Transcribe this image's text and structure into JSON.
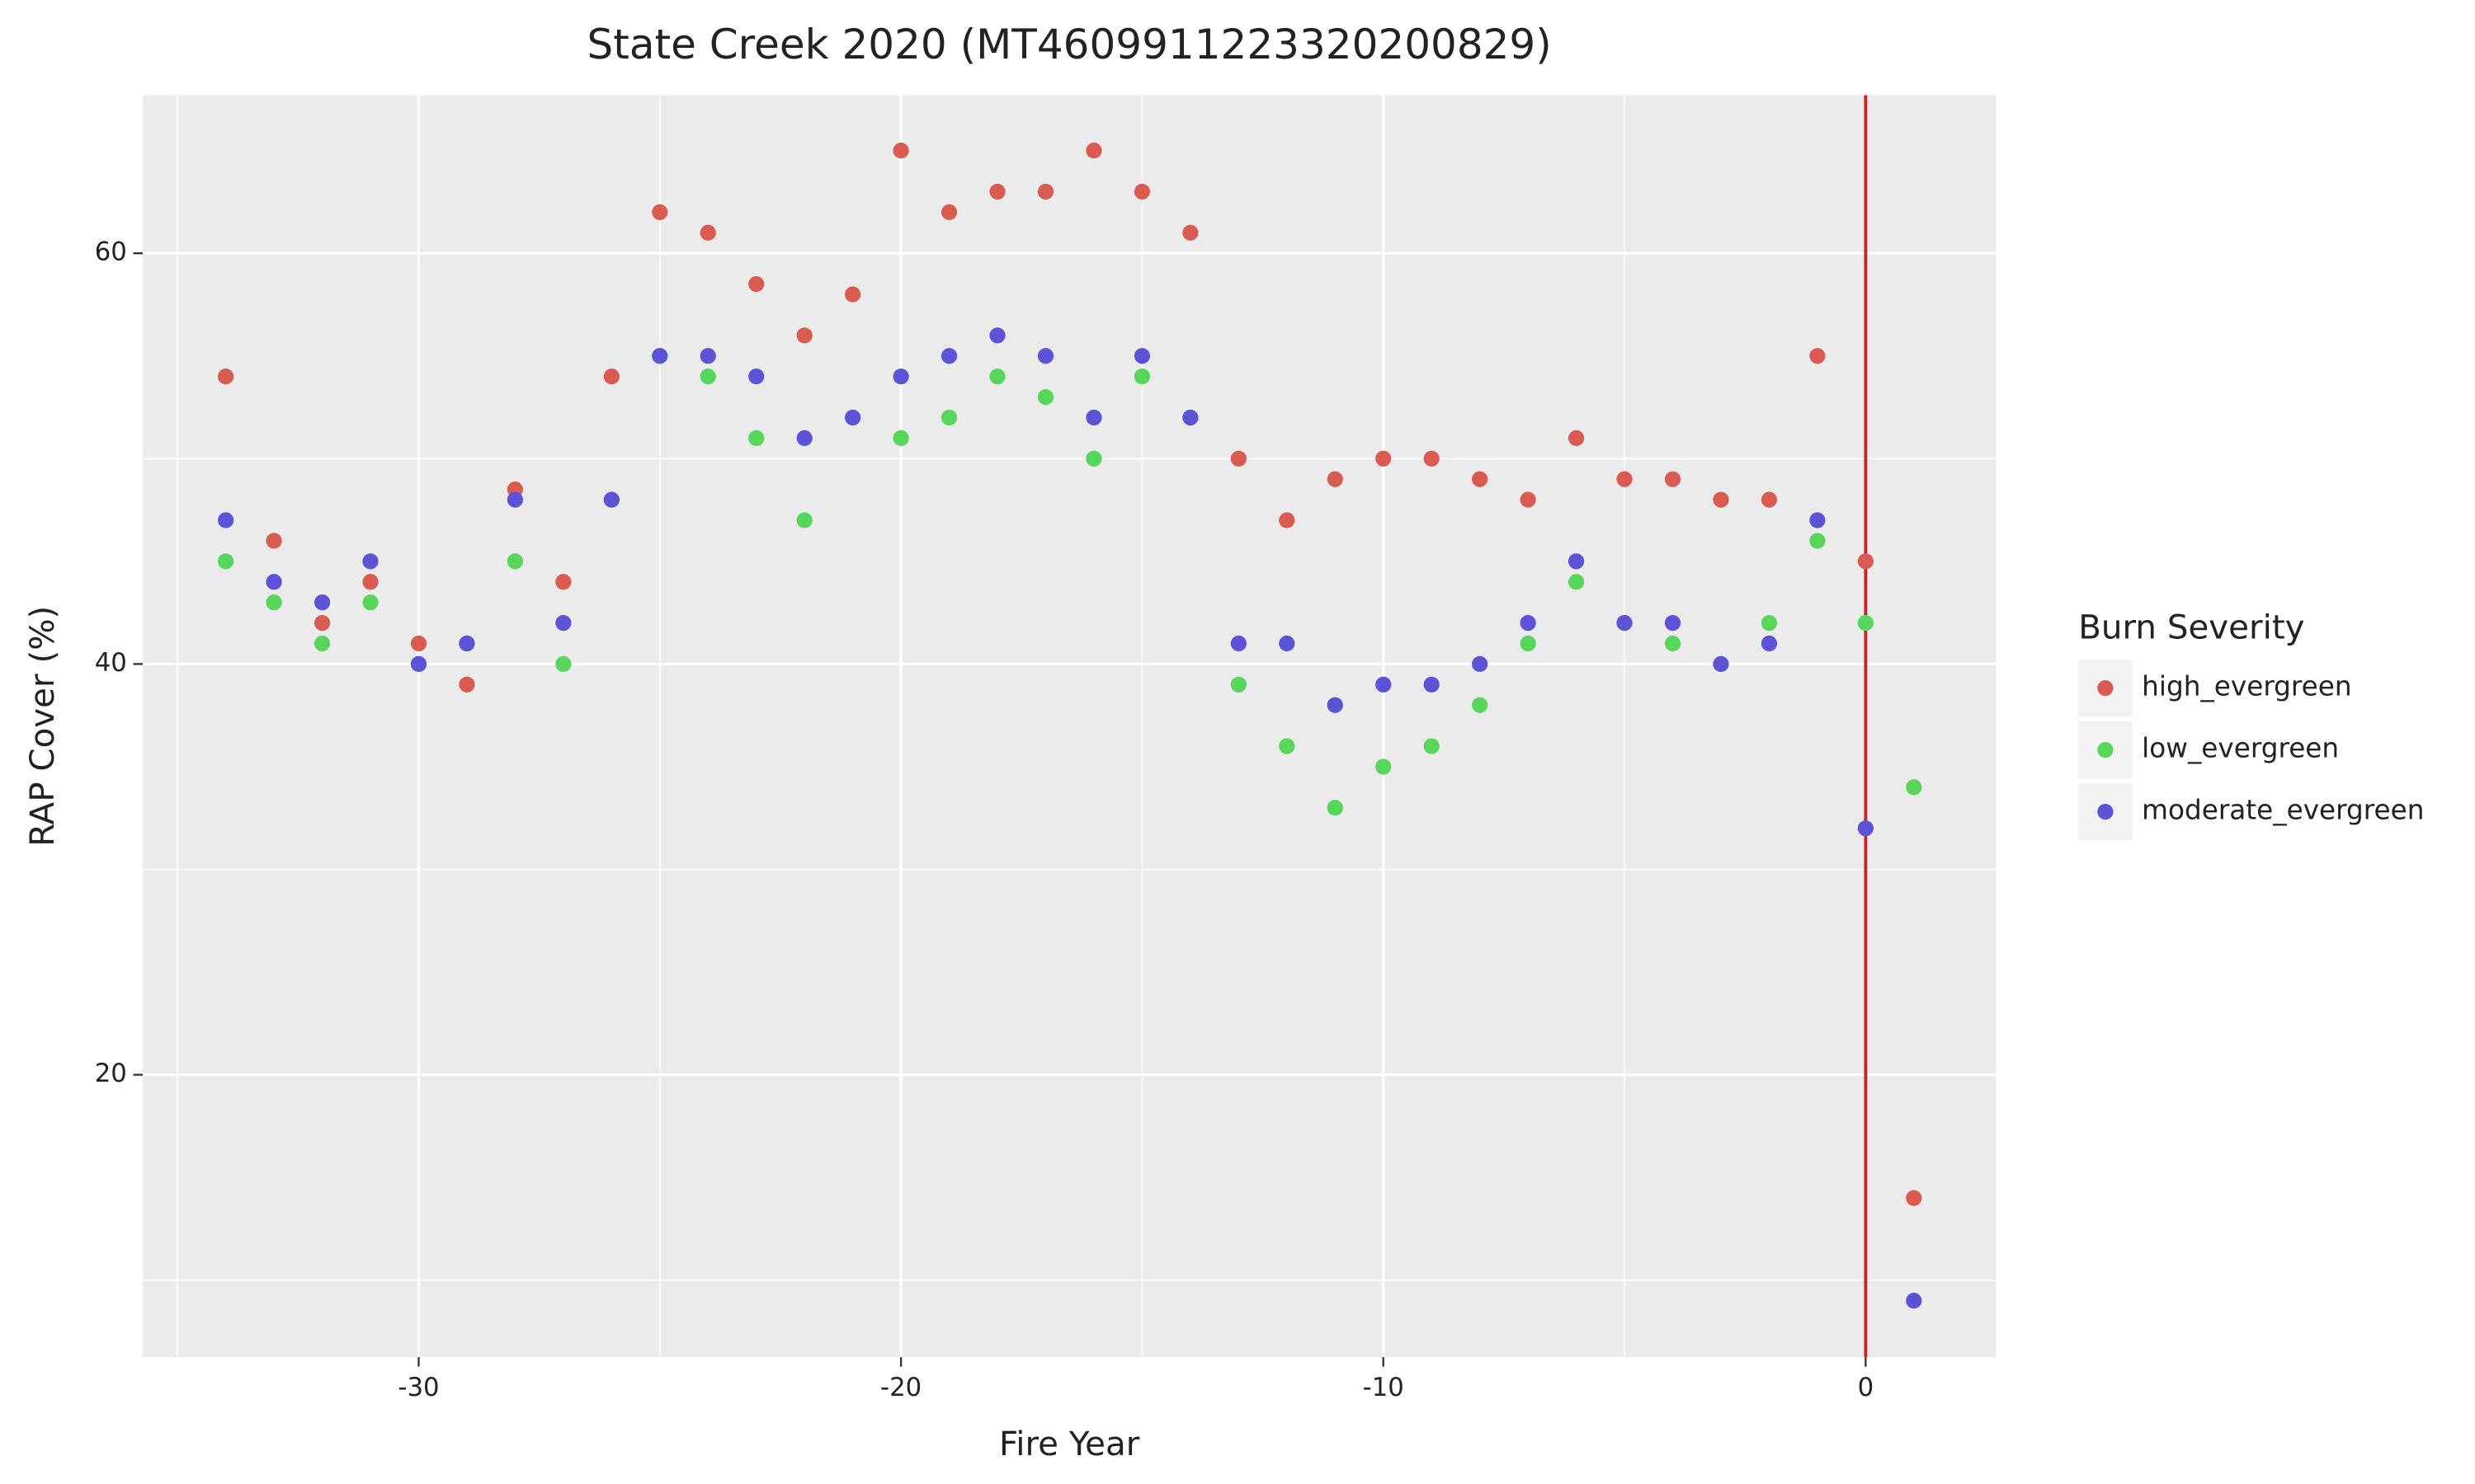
{
  "chart_data": {
    "type": "scatter",
    "title": "State Creek 2020 (MT4609911223320200829)",
    "x_label": "Fire Year",
    "y_label": "RAP Cover (%)",
    "legend_title": "Burn Severity",
    "legend_position": "right",
    "x": [
      -34,
      -33,
      -32,
      -31,
      -30,
      -29,
      -28,
      -27,
      -26,
      -25,
      -24,
      -23,
      -22,
      -21,
      -20,
      -19,
      -18,
      -17,
      -16,
      -15,
      -14,
      -13,
      -12,
      -11,
      -10,
      -9,
      -8,
      -7,
      -6,
      -5,
      -4,
      -3,
      -2,
      -1,
      0,
      1
    ],
    "series": [
      {
        "name": "high_evergreen",
        "color": "#d95b52",
        "values": [
          54,
          46,
          42,
          44,
          41,
          39,
          48.5,
          44,
          54,
          62,
          61,
          58.5,
          56,
          58,
          65,
          62,
          63,
          63,
          65,
          63,
          61,
          50,
          47,
          49,
          50,
          50,
          49,
          48,
          51,
          49,
          49,
          48,
          48,
          55,
          45,
          14
        ]
      },
      {
        "name": "low_evergreen",
        "color": "#58d55b",
        "values": [
          45,
          43,
          41,
          43,
          40,
          41,
          45,
          40,
          48,
          55,
          54,
          51,
          47,
          52,
          51,
          52,
          54,
          53,
          50,
          54,
          52,
          39,
          36,
          33,
          35,
          36,
          38,
          41,
          44,
          42,
          41,
          40,
          42,
          46,
          42,
          34
        ]
      },
      {
        "name": "moderate_evergreen",
        "color": "#5c53d6",
        "values": [
          47,
          44,
          43,
          45,
          40,
          41,
          48,
          42,
          48,
          55,
          55,
          54,
          51,
          52,
          54,
          55,
          56,
          55,
          52,
          55,
          52,
          41,
          41,
          38,
          39,
          39,
          40,
          42,
          45,
          42,
          42,
          40,
          41,
          47,
          32,
          9
        ]
      }
    ],
    "xlim": [
      -35.72,
      2.7
    ],
    "ylim": [
      6.25,
      67.7
    ],
    "xticks": [
      -30,
      -20,
      -10,
      0
    ],
    "yticks": [
      20,
      40,
      60
    ],
    "x_minor_grid": [
      -35,
      -25,
      -15,
      -5
    ],
    "y_minor_grid": [
      10,
      30,
      50
    ],
    "grid": true,
    "vline": 0,
    "vline_color": "#cc2222"
  }
}
